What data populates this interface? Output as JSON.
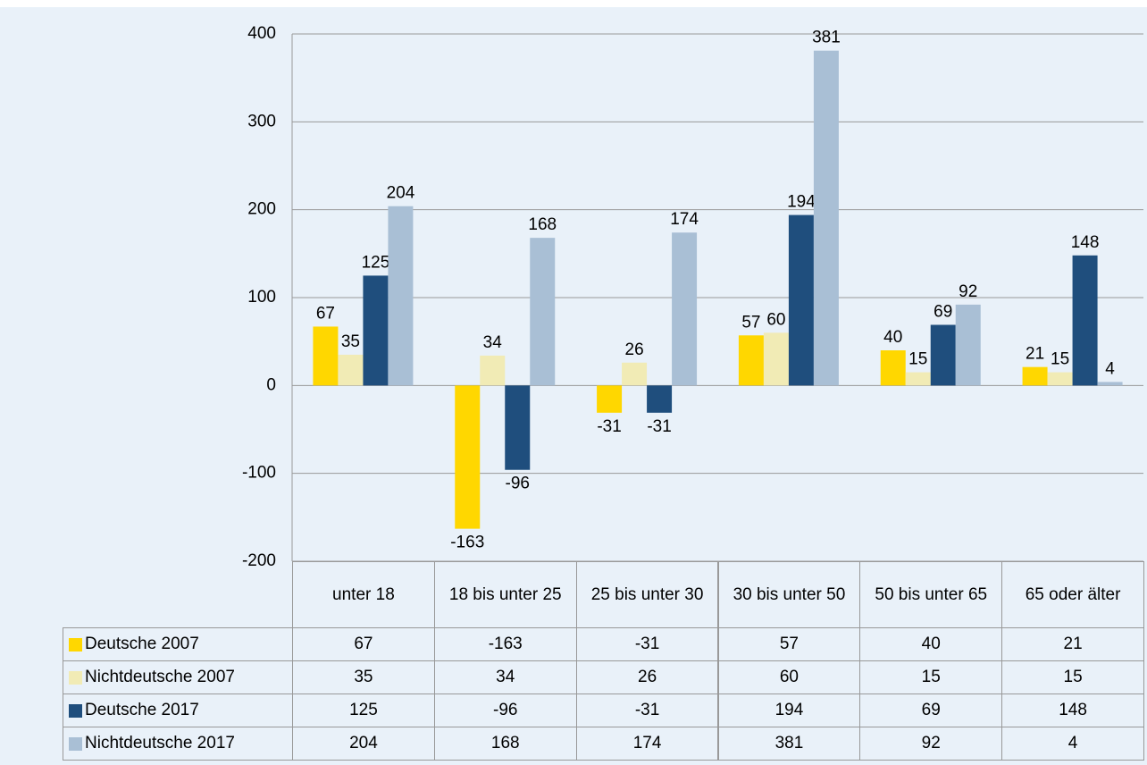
{
  "chart_data": {
    "type": "bar",
    "categories": [
      "unter 18",
      "18 bis unter 25",
      "25 bis unter 30",
      "30 bis unter 50",
      "50 bis unter 65",
      "65 oder älter"
    ],
    "series": [
      {
        "name": "Deutsche 2007",
        "color": "#ffd700",
        "values": [
          67,
          -163,
          -31,
          57,
          40,
          21
        ]
      },
      {
        "name": "Nichtdeutsche 2007",
        "color": "#f1ebb5",
        "values": [
          35,
          34,
          26,
          60,
          15,
          15
        ]
      },
      {
        "name": "Deutsche 2017",
        "color": "#1f4e7d",
        "values": [
          125,
          -96,
          -31,
          194,
          69,
          148
        ]
      },
      {
        "name": "Nichtdeutsche 2017",
        "color": "#a9bfd5",
        "values": [
          204,
          168,
          174,
          381,
          92,
          4
        ]
      }
    ],
    "ylim": [
      -200,
      400
    ],
    "yticks": [
      -200,
      -100,
      0,
      100,
      200,
      300,
      400
    ],
    "grid": true
  }
}
